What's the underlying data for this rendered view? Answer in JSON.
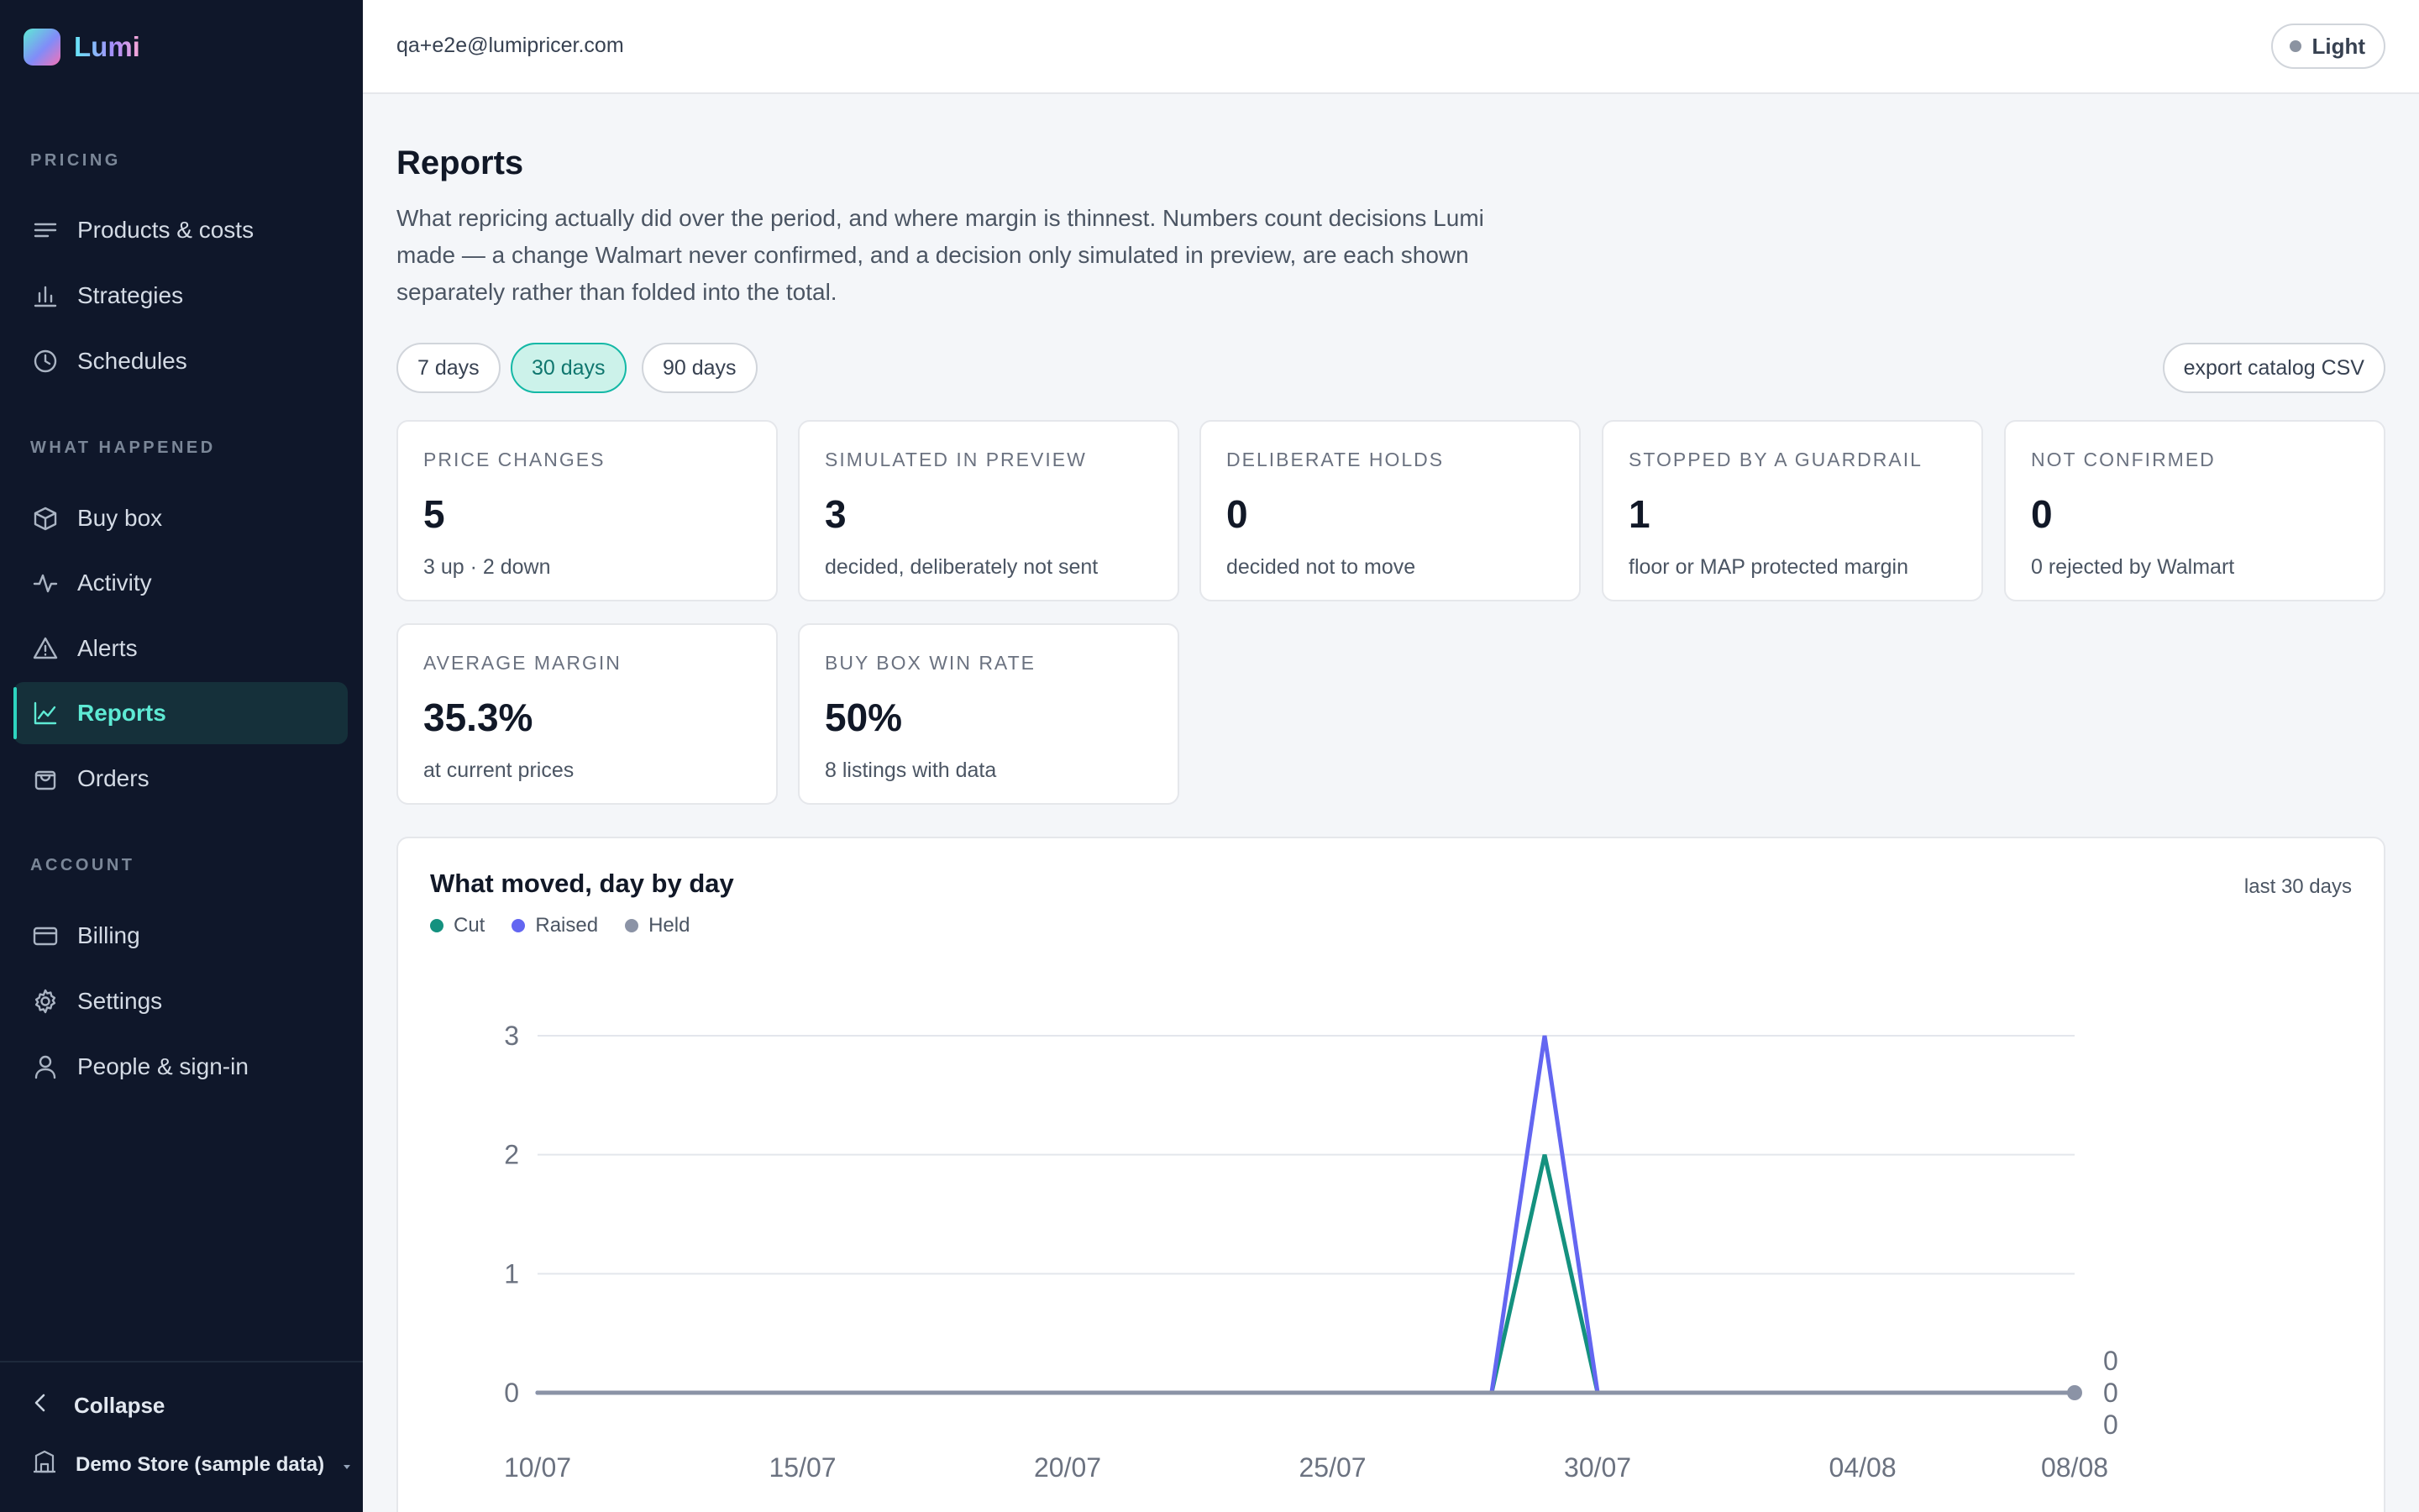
{
  "brand": {
    "name": "Lumi"
  },
  "sidebar": {
    "sections": [
      {
        "label": "PRICING"
      },
      {
        "label": "WHAT HAPPENED"
      },
      {
        "label": "ACCOUNT"
      }
    ],
    "items": [
      {
        "label": "Products & costs",
        "icon": "list-icon"
      },
      {
        "label": "Strategies",
        "icon": "bar-chart-icon"
      },
      {
        "label": "Schedules",
        "icon": "clock-icon"
      },
      {
        "label": "Buy box",
        "icon": "box-icon"
      },
      {
        "label": "Activity",
        "icon": "activity-icon"
      },
      {
        "label": "Alerts",
        "icon": "warning-icon"
      },
      {
        "label": "Reports",
        "icon": "line-chart-icon",
        "active": true
      },
      {
        "label": "Orders",
        "icon": "bag-icon"
      },
      {
        "label": "Billing",
        "icon": "credit-card-icon"
      },
      {
        "label": "Settings",
        "icon": "gear-icon"
      },
      {
        "label": "People & sign-in",
        "icon": "user-icon"
      }
    ],
    "collapse_label": "Collapse",
    "store_label": "Demo Store (sample data)"
  },
  "topbar": {
    "user_email": "qa+e2e@lumipricer.com",
    "theme_label": "Light"
  },
  "page": {
    "title": "Reports",
    "description": "What repricing actually did over the period, and where margin is thinnest. Numbers count decisions Lumi made — a change Walmart never confirmed, and a decision only simulated in preview, are each shown separately rather than folded into the total."
  },
  "ranges": [
    {
      "label": "7 days"
    },
    {
      "label": "30 days",
      "selected": true
    },
    {
      "label": "90 days"
    }
  ],
  "export_label": "export catalog CSV",
  "cards": [
    {
      "label": "PRICE CHANGES",
      "value": "5",
      "sub": "3 up · 2 down"
    },
    {
      "label": "SIMULATED IN PREVIEW",
      "value": "3",
      "sub": "decided, deliberately not sent"
    },
    {
      "label": "DELIBERATE HOLDS",
      "value": "0",
      "sub": "decided not to move"
    },
    {
      "label": "STOPPED BY A GUARDRAIL",
      "value": "1",
      "sub": "floor or MAP protected margin"
    },
    {
      "label": "NOT CONFIRMED",
      "value": "0",
      "sub": "0 rejected by Walmart"
    },
    {
      "label": "AVERAGE MARGIN",
      "value": "35.3%",
      "sub": "at current prices"
    },
    {
      "label": "BUY BOX WIN RATE",
      "value": "50%",
      "sub": "8 listings with data"
    }
  ],
  "chart_panel": {
    "title": "What moved, day by day",
    "range_label": "last 30 days"
  },
  "colors": {
    "cut": "#14917f",
    "raised": "#6366f1",
    "held": "#8b93a6",
    "accent": "#2dd4bf"
  },
  "chart_data": {
    "type": "line",
    "x": [
      "10/07",
      "11/07",
      "12/07",
      "13/07",
      "14/07",
      "15/07",
      "16/07",
      "17/07",
      "18/07",
      "19/07",
      "20/07",
      "21/07",
      "22/07",
      "23/07",
      "24/07",
      "25/07",
      "26/07",
      "27/07",
      "28/07",
      "29/07",
      "30/07",
      "31/07",
      "01/08",
      "02/08",
      "03/08",
      "04/08",
      "05/08",
      "06/08",
      "07/08",
      "08/08"
    ],
    "x_ticks": [
      "10/07",
      "15/07",
      "20/07",
      "25/07",
      "30/07",
      "04/08",
      "08/08"
    ],
    "series": [
      {
        "name": "Cut",
        "color": "#14917f",
        "values": [
          0,
          0,
          0,
          0,
          0,
          0,
          0,
          0,
          0,
          0,
          0,
          0,
          0,
          0,
          0,
          0,
          0,
          0,
          0,
          2,
          0,
          0,
          0,
          0,
          0,
          0,
          0,
          0,
          0,
          0
        ]
      },
      {
        "name": "Raised",
        "color": "#6366f1",
        "values": [
          0,
          0,
          0,
          0,
          0,
          0,
          0,
          0,
          0,
          0,
          0,
          0,
          0,
          0,
          0,
          0,
          0,
          0,
          0,
          3,
          0,
          0,
          0,
          0,
          0,
          0,
          0,
          0,
          0,
          0
        ]
      },
      {
        "name": "Held",
        "color": "#8b93a6",
        "values": [
          0,
          0,
          0,
          0,
          0,
          0,
          0,
          0,
          0,
          0,
          0,
          0,
          0,
          0,
          0,
          0,
          0,
          0,
          0,
          0,
          0,
          0,
          0,
          0,
          0,
          0,
          0,
          0,
          0,
          0
        ]
      }
    ],
    "end_labels": [
      "0",
      "0",
      "0"
    ],
    "y_ticks": [
      0,
      1,
      2,
      3
    ],
    "ylim": [
      0,
      3
    ],
    "grid": true,
    "legend": "top-left"
  }
}
